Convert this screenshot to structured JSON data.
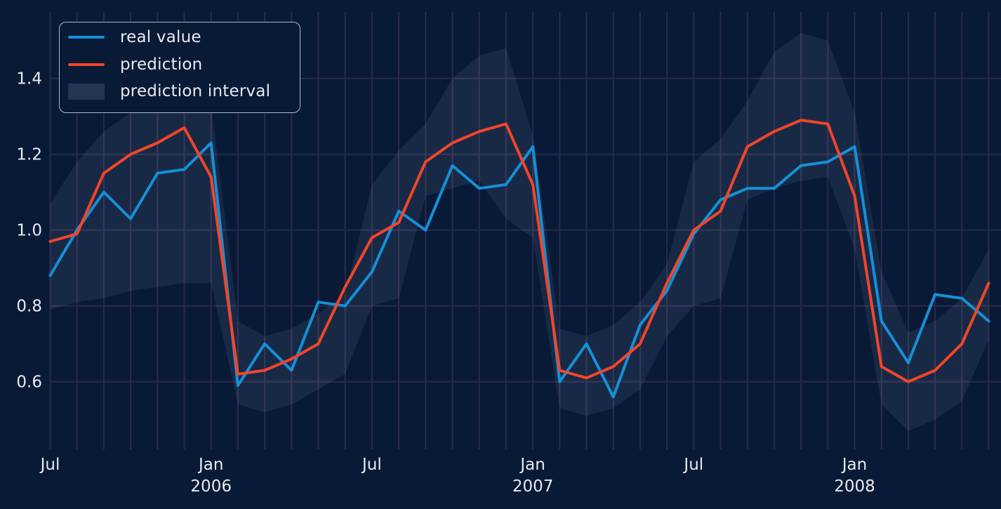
{
  "chart_data": {
    "type": "line",
    "title": "",
    "x_unit": "month",
    "months": [
      "2005-07",
      "2005-08",
      "2005-09",
      "2005-10",
      "2005-11",
      "2005-12",
      "2006-01",
      "2006-02",
      "2006-03",
      "2006-04",
      "2006-05",
      "2006-06",
      "2006-07",
      "2006-08",
      "2006-09",
      "2006-10",
      "2006-11",
      "2006-12",
      "2007-01",
      "2007-02",
      "2007-03",
      "2007-04",
      "2007-05",
      "2007-06",
      "2007-07",
      "2007-08",
      "2007-09",
      "2007-10",
      "2007-11",
      "2007-12",
      "2008-01",
      "2008-02",
      "2008-03",
      "2008-04",
      "2008-05",
      "2008-06"
    ],
    "series": [
      {
        "name": "real value",
        "color": "#1490d8",
        "values": [
          0.88,
          1.0,
          1.1,
          1.03,
          1.15,
          1.16,
          1.23,
          0.59,
          0.7,
          0.63,
          0.81,
          0.8,
          0.89,
          1.05,
          1.0,
          1.17,
          1.11,
          1.12,
          1.22,
          0.6,
          0.7,
          0.56,
          0.75,
          0.84,
          0.99,
          1.08,
          1.11,
          1.11,
          1.17,
          1.18,
          1.22,
          0.76,
          0.65,
          0.83,
          0.82,
          0.76
        ]
      },
      {
        "name": "prediction",
        "color": "#f2452a",
        "values": [
          0.97,
          0.99,
          1.15,
          1.2,
          1.23,
          1.27,
          1.14,
          0.62,
          0.63,
          0.66,
          0.7,
          0.85,
          0.98,
          1.02,
          1.18,
          1.23,
          1.26,
          1.28,
          1.12,
          0.63,
          0.61,
          0.64,
          0.7,
          0.86,
          1.0,
          1.05,
          1.22,
          1.26,
          1.29,
          1.28,
          1.09,
          0.64,
          0.6,
          0.63,
          0.7,
          0.86
        ]
      }
    ],
    "interval": {
      "name": "prediction interval",
      "fill": "rgba(198,208,228,0.085)",
      "legend_fill": "rgba(198,208,228,0.16)",
      "upper": [
        1.07,
        1.18,
        1.26,
        1.31,
        1.33,
        1.35,
        1.33,
        0.76,
        0.72,
        0.74,
        0.78,
        0.83,
        1.12,
        1.21,
        1.28,
        1.4,
        1.46,
        1.48,
        1.25,
        0.74,
        0.72,
        0.75,
        0.81,
        0.91,
        1.18,
        1.24,
        1.34,
        1.47,
        1.52,
        1.5,
        1.31,
        0.89,
        0.73,
        0.76,
        0.82,
        0.95
      ],
      "lower": [
        0.79,
        0.81,
        0.82,
        0.84,
        0.85,
        0.86,
        0.86,
        0.54,
        0.52,
        0.54,
        0.58,
        0.62,
        0.8,
        0.82,
        1.09,
        1.11,
        1.13,
        1.03,
        0.98,
        0.53,
        0.51,
        0.53,
        0.58,
        0.72,
        0.8,
        0.82,
        1.08,
        1.11,
        1.13,
        1.14,
        0.95,
        0.54,
        0.47,
        0.5,
        0.55,
        0.71
      ]
    },
    "x_ticks": [
      {
        "index": 0,
        "label": "Jul",
        "year": ""
      },
      {
        "index": 6,
        "label": "Jan",
        "year": "2006"
      },
      {
        "index": 12,
        "label": "Jul",
        "year": ""
      },
      {
        "index": 18,
        "label": "Jan",
        "year": "2007"
      },
      {
        "index": 24,
        "label": "Jul",
        "year": ""
      },
      {
        "index": 30,
        "label": "Jan",
        "year": "2008"
      }
    ],
    "y_ticks": [
      "0.6",
      "0.8",
      "1.0",
      "1.2",
      "1.4"
    ],
    "ylim": [
      0.44,
      1.58
    ],
    "grid": true,
    "legend_position": "upper left",
    "colors": {
      "background": "#081a36",
      "grid": "#2a2b4b",
      "text": "#e9ebee",
      "legend_border": "rgba(205,211,221,0.85)"
    }
  }
}
